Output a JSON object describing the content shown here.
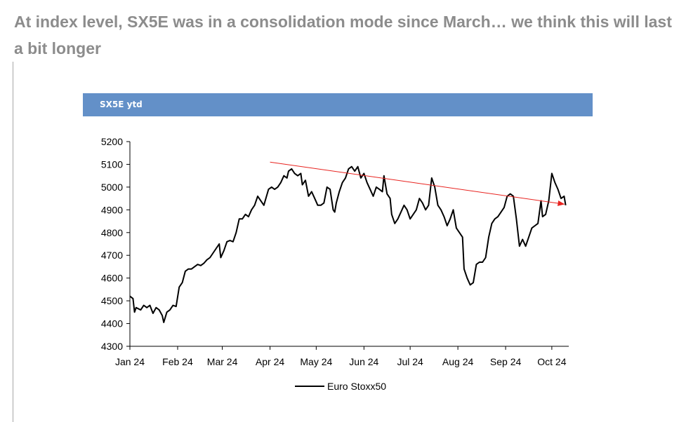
{
  "headline": "At index level, SX5E was in a consolidation mode since March… we think this will last a bit longer",
  "panel_title": "SX5E ytd",
  "colors": {
    "title": "#8c8c8c",
    "band": "#6390c8",
    "series": "#000000",
    "trend": "#e8231f"
  },
  "chart_data": {
    "type": "line",
    "title": "SX5E ytd",
    "xlabel": "",
    "ylabel": "",
    "ylim": [
      4300,
      5200
    ],
    "yticks": [
      "4300",
      "4400",
      "4500",
      "4600",
      "4700",
      "4800",
      "4900",
      "5000",
      "5100",
      "5200"
    ],
    "xticks": [
      "Jan 24",
      "Feb 24",
      "Mar 24",
      "Apr 24",
      "May 24",
      "Jun 24",
      "Jul 24",
      "Aug 24",
      "Sep 24",
      "Oct 24"
    ],
    "xtick_dates": [
      "2024-01-01",
      "2024-02-01",
      "2024-03-01",
      "2024-04-01",
      "2024-05-01",
      "2024-06-01",
      "2024-07-01",
      "2024-08-01",
      "2024-09-01",
      "2024-10-01"
    ],
    "grid": false,
    "legend": "bottom-center",
    "series": [
      {
        "name": "Euro Stoxx50",
        "points": [
          [
            "2024-01-01",
            4520
          ],
          [
            "2024-01-03",
            4510
          ],
          [
            "2024-01-04",
            4450
          ],
          [
            "2024-01-05",
            4470
          ],
          [
            "2024-01-08",
            4460
          ],
          [
            "2024-01-10",
            4480
          ],
          [
            "2024-01-12",
            4470
          ],
          [
            "2024-01-14",
            4480
          ],
          [
            "2024-01-16",
            4445
          ],
          [
            "2024-01-18",
            4470
          ],
          [
            "2024-01-20",
            4460
          ],
          [
            "2024-01-22",
            4435
          ],
          [
            "2024-01-23",
            4405
          ],
          [
            "2024-01-25",
            4450
          ],
          [
            "2024-01-27",
            4460
          ],
          [
            "2024-01-29",
            4480
          ],
          [
            "2024-01-31",
            4475
          ],
          [
            "2024-02-02",
            4560
          ],
          [
            "2024-02-04",
            4580
          ],
          [
            "2024-02-06",
            4630
          ],
          [
            "2024-02-08",
            4640
          ],
          [
            "2024-02-10",
            4640
          ],
          [
            "2024-02-12",
            4650
          ],
          [
            "2024-02-14",
            4660
          ],
          [
            "2024-02-16",
            4655
          ],
          [
            "2024-02-18",
            4665
          ],
          [
            "2024-02-20",
            4680
          ],
          [
            "2024-02-22",
            4690
          ],
          [
            "2024-02-24",
            4710
          ],
          [
            "2024-02-26",
            4730
          ],
          [
            "2024-02-28",
            4750
          ],
          [
            "2024-02-29",
            4690
          ],
          [
            "2024-03-02",
            4720
          ],
          [
            "2024-03-04",
            4760
          ],
          [
            "2024-03-06",
            4765
          ],
          [
            "2024-03-08",
            4760
          ],
          [
            "2024-03-10",
            4800
          ],
          [
            "2024-03-12",
            4860
          ],
          [
            "2024-03-14",
            4860
          ],
          [
            "2024-03-16",
            4880
          ],
          [
            "2024-03-18",
            4870
          ],
          [
            "2024-03-20",
            4900
          ],
          [
            "2024-03-22",
            4920
          ],
          [
            "2024-03-24",
            4960
          ],
          [
            "2024-03-26",
            4940
          ],
          [
            "2024-03-28",
            4920
          ],
          [
            "2024-03-31",
            4990
          ],
          [
            "2024-04-02",
            5000
          ],
          [
            "2024-04-04",
            4990
          ],
          [
            "2024-04-06",
            5000
          ],
          [
            "2024-04-08",
            5020
          ],
          [
            "2024-04-10",
            5050
          ],
          [
            "2024-04-12",
            5040
          ],
          [
            "2024-04-13",
            5070
          ],
          [
            "2024-04-15",
            5080
          ],
          [
            "2024-04-17",
            5060
          ],
          [
            "2024-04-19",
            5050
          ],
          [
            "2024-04-21",
            5060
          ],
          [
            "2024-04-22",
            5010
          ],
          [
            "2024-04-24",
            5030
          ],
          [
            "2024-04-26",
            4960
          ],
          [
            "2024-04-28",
            4980
          ],
          [
            "2024-04-30",
            4950
          ],
          [
            "2024-05-02",
            4920
          ],
          [
            "2024-05-04",
            4920
          ],
          [
            "2024-05-06",
            4930
          ],
          [
            "2024-05-08",
            5000
          ],
          [
            "2024-05-10",
            4990
          ],
          [
            "2024-05-12",
            4900
          ],
          [
            "2024-05-13",
            4890
          ],
          [
            "2024-05-14",
            4930
          ],
          [
            "2024-05-16",
            4980
          ],
          [
            "2024-05-18",
            5020
          ],
          [
            "2024-05-20",
            5040
          ],
          [
            "2024-05-22",
            5080
          ],
          [
            "2024-05-24",
            5090
          ],
          [
            "2024-05-26",
            5070
          ],
          [
            "2024-05-28",
            5090
          ],
          [
            "2024-05-30",
            5040
          ],
          [
            "2024-06-01",
            5060
          ],
          [
            "2024-06-03",
            5020
          ],
          [
            "2024-06-05",
            4990
          ],
          [
            "2024-06-07",
            4960
          ],
          [
            "2024-06-09",
            5000
          ],
          [
            "2024-06-11",
            4990
          ],
          [
            "2024-06-13",
            4980
          ],
          [
            "2024-06-14",
            5050
          ],
          [
            "2024-06-16",
            4970
          ],
          [
            "2024-06-18",
            4950
          ],
          [
            "2024-06-19",
            4880
          ],
          [
            "2024-06-21",
            4840
          ],
          [
            "2024-06-23",
            4860
          ],
          [
            "2024-06-25",
            4890
          ],
          [
            "2024-06-27",
            4920
          ],
          [
            "2024-06-29",
            4900
          ],
          [
            "2024-07-01",
            4860
          ],
          [
            "2024-07-03",
            4880
          ],
          [
            "2024-07-05",
            4900
          ],
          [
            "2024-07-07",
            4950
          ],
          [
            "2024-07-09",
            4930
          ],
          [
            "2024-07-11",
            4900
          ],
          [
            "2024-07-13",
            4920
          ],
          [
            "2024-07-15",
            5040
          ],
          [
            "2024-07-17",
            5000
          ],
          [
            "2024-07-19",
            4920
          ],
          [
            "2024-07-21",
            4900
          ],
          [
            "2024-07-23",
            4870
          ],
          [
            "2024-07-25",
            4830
          ],
          [
            "2024-07-27",
            4860
          ],
          [
            "2024-07-29",
            4900
          ],
          [
            "2024-07-31",
            4820
          ],
          [
            "2024-08-02",
            4800
          ],
          [
            "2024-08-04",
            4780
          ],
          [
            "2024-08-05",
            4640
          ],
          [
            "2024-08-07",
            4600
          ],
          [
            "2024-08-09",
            4570
          ],
          [
            "2024-08-11",
            4580
          ],
          [
            "2024-08-13",
            4660
          ],
          [
            "2024-08-15",
            4670
          ],
          [
            "2024-08-17",
            4670
          ],
          [
            "2024-08-19",
            4690
          ],
          [
            "2024-08-21",
            4780
          ],
          [
            "2024-08-23",
            4840
          ],
          [
            "2024-08-25",
            4860
          ],
          [
            "2024-08-27",
            4870
          ],
          [
            "2024-08-29",
            4890
          ],
          [
            "2024-08-31",
            4910
          ],
          [
            "2024-09-02",
            4960
          ],
          [
            "2024-09-04",
            4970
          ],
          [
            "2024-09-06",
            4960
          ],
          [
            "2024-09-08",
            4860
          ],
          [
            "2024-09-10",
            4740
          ],
          [
            "2024-09-12",
            4770
          ],
          [
            "2024-09-14",
            4740
          ],
          [
            "2024-09-16",
            4780
          ],
          [
            "2024-09-18",
            4820
          ],
          [
            "2024-09-20",
            4830
          ],
          [
            "2024-09-22",
            4840
          ],
          [
            "2024-09-24",
            4940
          ],
          [
            "2024-09-25",
            4870
          ],
          [
            "2024-09-27",
            4880
          ],
          [
            "2024-09-29",
            4940
          ],
          [
            "2024-10-01",
            5060
          ],
          [
            "2024-10-03",
            5020
          ],
          [
            "2024-10-05",
            4990
          ],
          [
            "2024-10-07",
            4950
          ],
          [
            "2024-10-09",
            4960
          ],
          [
            "2024-10-10",
            4920
          ]
        ]
      }
    ],
    "annotations": [
      {
        "type": "arrow",
        "from": [
          "2024-04-01",
          5110
        ],
        "to": [
          "2024-10-09",
          4925
        ],
        "color": "#e8231f"
      }
    ]
  }
}
